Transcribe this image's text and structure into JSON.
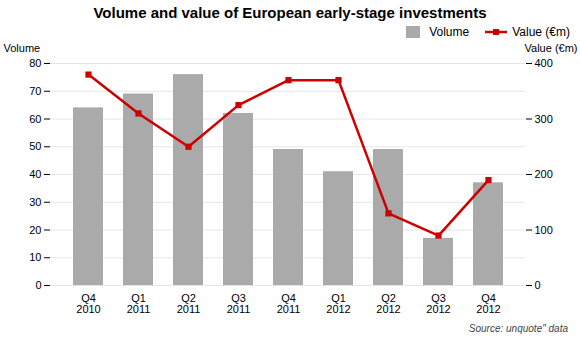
{
  "chart_data": {
    "type": "bar",
    "title": "Volume and value of European early-stage investments",
    "categories": [
      "Q4\n2010",
      "Q1\n2011",
      "Q2\n2011",
      "Q3\n2011",
      "Q4\n2011",
      "Q1\n2012",
      "Q2\n2012",
      "Q3\n2012",
      "Q4\n2012"
    ],
    "series": [
      {
        "name": "Volume",
        "type": "bar",
        "color": "#aaaaaa",
        "values": [
          64,
          69,
          76,
          62,
          49,
          41,
          49,
          17,
          37
        ]
      },
      {
        "name": "Value (€m)",
        "type": "line",
        "axis": "y2",
        "color": "#cc0000",
        "marker": "square",
        "values": [
          380,
          310,
          250,
          325,
          370,
          370,
          130,
          90,
          190
        ]
      }
    ],
    "ylabel": "Volume",
    "y2label": "Value (€m)",
    "ylim": [
      0,
      80
    ],
    "yticks": [
      0,
      10,
      20,
      30,
      40,
      50,
      60,
      70,
      80
    ],
    "y2lim": [
      0,
      400
    ],
    "y2ticks": [
      0,
      100,
      200,
      300,
      400
    ],
    "grid": true,
    "legend": "upper right",
    "source": "Source: unquote\" data"
  }
}
